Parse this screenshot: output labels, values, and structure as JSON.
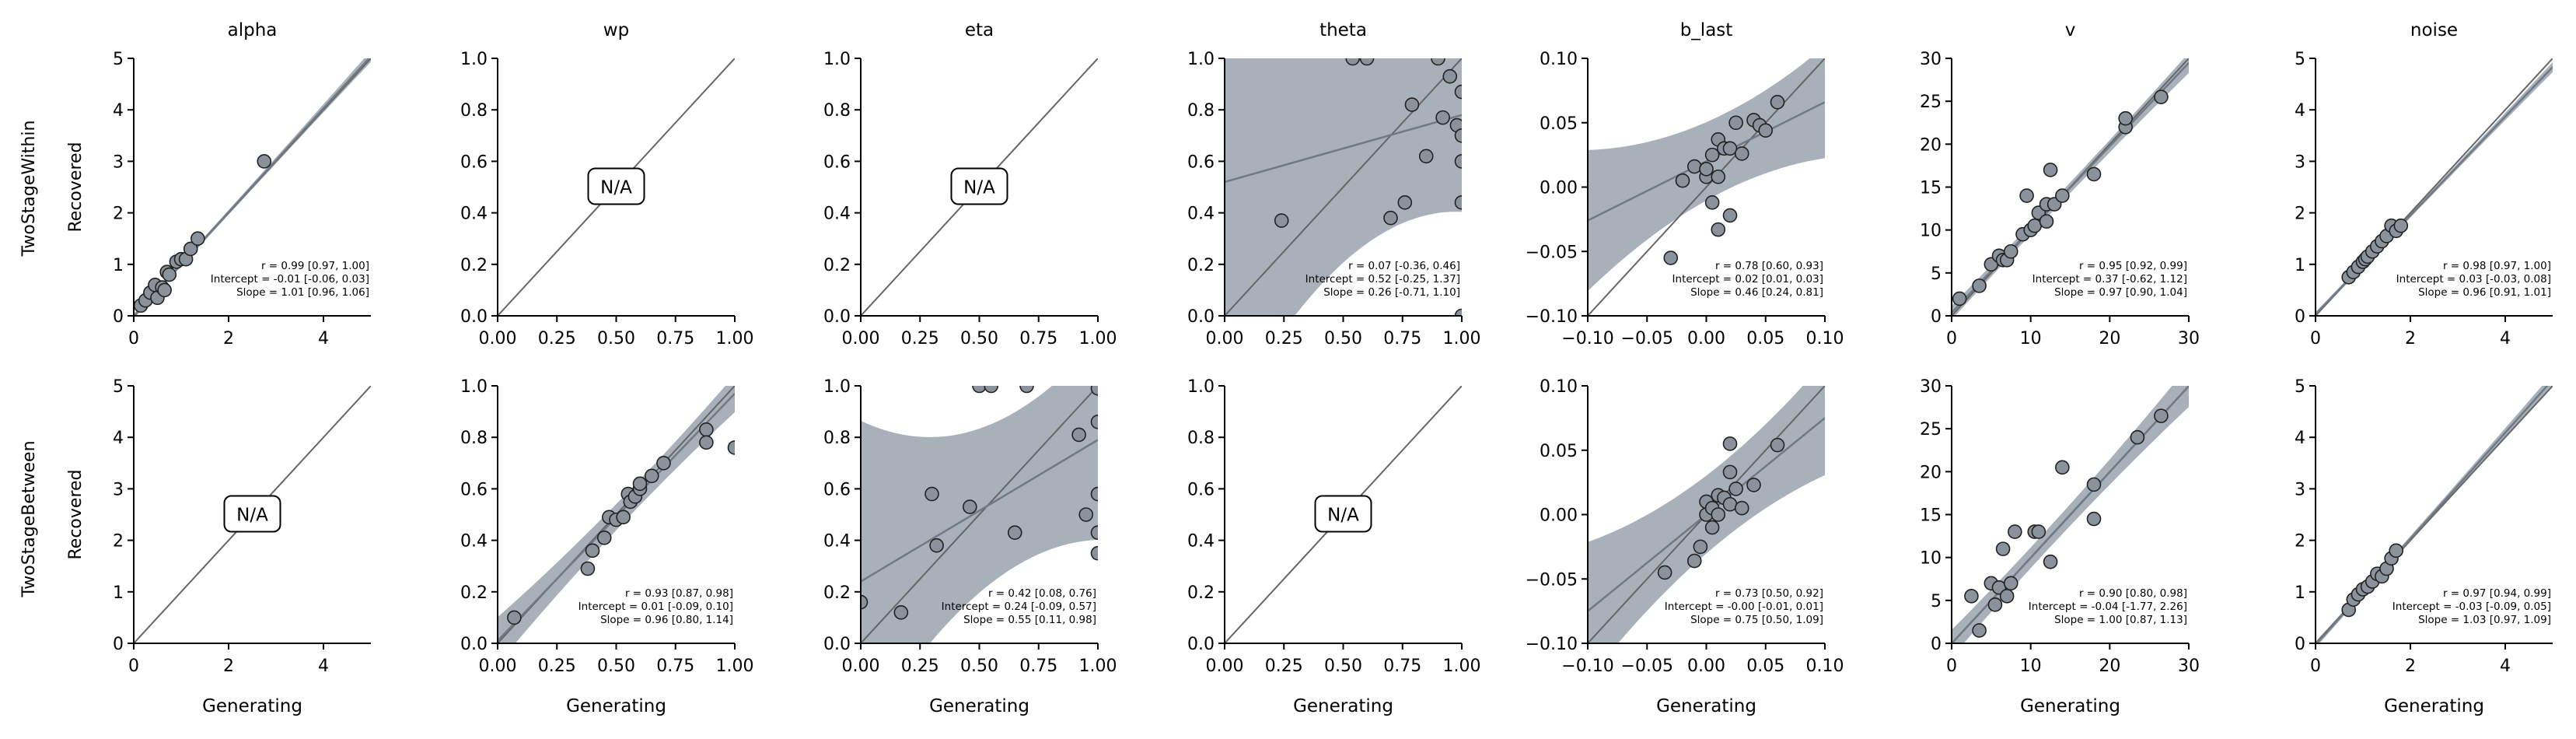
{
  "row_labels": [
    "TwoStageWithin",
    "TwoStageBetween"
  ],
  "chart_data": [
    {
      "type": "scatter",
      "title": "alpha",
      "xlabel": "",
      "ylabel": "Recovered",
      "xlim": [
        0,
        5
      ],
      "ylim": [
        0,
        5
      ],
      "xticks": [
        "0",
        "2",
        "4"
      ],
      "yticks": [
        "0",
        "1",
        "2",
        "3",
        "4",
        "5"
      ],
      "na": false,
      "x": [
        0.15,
        0.25,
        0.35,
        0.45,
        0.5,
        0.6,
        0.65,
        0.7,
        0.75,
        0.9,
        1.0,
        1.1,
        1.2,
        1.35,
        2.75
      ],
      "y": [
        0.2,
        0.3,
        0.45,
        0.6,
        0.35,
        0.55,
        0.5,
        0.85,
        0.8,
        1.05,
        1.1,
        1.1,
        1.3,
        1.5,
        3.0
      ],
      "fit": {
        "intercept": -0.01,
        "slope": 1.01,
        "band": 0.04
      },
      "stats": [
        "r = 0.99 [0.97, 1.00]",
        "Intercept = -0.01 [-0.06, 0.03]",
        "Slope = 1.01 [0.96, 1.06]"
      ]
    },
    {
      "type": "scatter",
      "title": "wp",
      "xlabel": "",
      "ylabel": "",
      "xlim": [
        0,
        1
      ],
      "ylim": [
        0,
        1
      ],
      "xticks": [
        "0.00",
        "0.25",
        "0.50",
        "0.75",
        "1.00"
      ],
      "yticks": [
        "0.0",
        "0.2",
        "0.4",
        "0.6",
        "0.8",
        "1.0"
      ],
      "na": true,
      "na_label": "N/A",
      "x": [],
      "y": [],
      "stats": []
    },
    {
      "type": "scatter",
      "title": "eta",
      "xlabel": "",
      "ylabel": "",
      "xlim": [
        0,
        1
      ],
      "ylim": [
        0,
        1
      ],
      "xticks": [
        "0.00",
        "0.25",
        "0.50",
        "0.75",
        "1.00"
      ],
      "yticks": [
        "0.0",
        "0.2",
        "0.4",
        "0.6",
        "0.8",
        "1.0"
      ],
      "na": true,
      "na_label": "N/A",
      "x": [],
      "y": [],
      "stats": []
    },
    {
      "type": "scatter",
      "title": "theta",
      "xlabel": "",
      "ylabel": "",
      "xlim": [
        0,
        1
      ],
      "ylim": [
        0,
        1
      ],
      "xticks": [
        "0.00",
        "0.25",
        "0.50",
        "0.75",
        "1.00"
      ],
      "yticks": [
        "0.0",
        "0.2",
        "0.4",
        "0.6",
        "0.8",
        "1.0"
      ],
      "na": false,
      "x": [
        0.24,
        0.54,
        0.6,
        0.7,
        0.76,
        0.79,
        0.85,
        0.9,
        0.92,
        0.95,
        0.98,
        1.0,
        1.0,
        1.0,
        1.0,
        1.0
      ],
      "y": [
        0.37,
        1.0,
        1.0,
        0.38,
        0.44,
        0.82,
        0.62,
        1.0,
        0.77,
        0.93,
        0.74,
        0.44,
        0.6,
        0.87,
        0.7,
        0.0
      ],
      "fit": {
        "intercept": 0.52,
        "slope": 0.26,
        "band": 0.35
      },
      "stats": [
        "r = 0.07 [-0.36, 0.46]",
        "Intercept = 0.52 [-0.25, 1.37]",
        "Slope = 0.26 [-0.71, 1.10]"
      ]
    },
    {
      "type": "scatter",
      "title": "b_last",
      "xlabel": "",
      "ylabel": "",
      "xlim": [
        -0.1,
        0.1
      ],
      "ylim": [
        -0.1,
        0.1
      ],
      "xticks": [
        "−0.10",
        "−0.05",
        "0.00",
        "0.05",
        "0.10"
      ],
      "yticks": [
        "−0.10",
        "−0.05",
        "0.00",
        "0.05",
        "0.10"
      ],
      "na": false,
      "x": [
        -0.03,
        -0.02,
        -0.01,
        0.0,
        0.0,
        0.005,
        0.005,
        0.01,
        0.01,
        0.01,
        0.015,
        0.02,
        0.02,
        0.025,
        0.03,
        0.04,
        0.045,
        0.05,
        0.06
      ],
      "y": [
        -0.055,
        0.005,
        0.016,
        0.008,
        0.014,
        0.025,
        -0.012,
        0.008,
        -0.033,
        0.037,
        0.03,
        -0.022,
        0.03,
        0.05,
        0.026,
        0.052,
        0.048,
        0.044,
        0.066
      ],
      "fit": {
        "intercept": 0.02,
        "slope": 0.46,
        "band": 0.03
      },
      "stats": [
        "r = 0.78 [0.60, 0.93]",
        "Intercept = 0.02 [0.01, 0.03]",
        "Slope = 0.46 [0.24, 0.81]"
      ]
    },
    {
      "type": "scatter",
      "title": "v",
      "xlabel": "",
      "ylabel": "",
      "xlim": [
        0,
        30
      ],
      "ylim": [
        0,
        30
      ],
      "xticks": [
        "0",
        "10",
        "20",
        "30"
      ],
      "yticks": [
        "0",
        "5",
        "10",
        "15",
        "20",
        "25",
        "30"
      ],
      "na": false,
      "x": [
        1,
        3.5,
        5,
        6,
        6.5,
        7,
        7.5,
        9,
        9.5,
        10,
        10.5,
        11,
        12,
        12,
        12.5,
        13,
        14,
        18,
        22,
        22,
        26.5
      ],
      "y": [
        2,
        3.5,
        6,
        7,
        6.5,
        6.5,
        7.5,
        9.5,
        14,
        10,
        10.5,
        12,
        11,
        13,
        17,
        13,
        14,
        16.5,
        22,
        23,
        25.5
      ],
      "fit": {
        "intercept": 0.37,
        "slope": 0.97,
        "band": 0.6
      },
      "stats": [
        "r = 0.95 [0.92, 0.99]",
        "Intercept = 0.37 [-0.62, 1.12]",
        "Slope = 0.97 [0.90, 1.04]"
      ]
    },
    {
      "type": "scatter",
      "title": "noise",
      "xlabel": "",
      "ylabel": "",
      "xlim": [
        0,
        5
      ],
      "ylim": [
        0,
        5
      ],
      "xticks": [
        "0",
        "2",
        "4"
      ],
      "yticks": [
        "0",
        "1",
        "2",
        "3",
        "4",
        "5"
      ],
      "na": false,
      "x": [
        0.7,
        0.8,
        0.9,
        1.0,
        1.05,
        1.1,
        1.2,
        1.3,
        1.4,
        1.5,
        1.6,
        1.7,
        1.8
      ],
      "y": [
        0.75,
        0.85,
        0.95,
        1.05,
        1.1,
        1.15,
        1.25,
        1.35,
        1.45,
        1.55,
        1.75,
        1.65,
        1.75
      ],
      "fit": {
        "intercept": 0.03,
        "slope": 0.96,
        "band": 0.04
      },
      "stats": [
        "r = 0.98 [0.97, 1.00]",
        "Intercept = 0.03 [-0.03, 0.08]",
        "Slope = 0.96 [0.91, 1.01]"
      ]
    },
    {
      "type": "scatter",
      "title": "",
      "xlabel": "Generating",
      "ylabel": "Recovered",
      "xlim": [
        0,
        5
      ],
      "ylim": [
        0,
        5
      ],
      "xticks": [
        "0",
        "2",
        "4"
      ],
      "yticks": [
        "0",
        "1",
        "2",
        "3",
        "4",
        "5"
      ],
      "na": true,
      "na_label": "N/A",
      "x": [],
      "y": [],
      "stats": []
    },
    {
      "type": "scatter",
      "title": "",
      "xlabel": "Generating",
      "ylabel": "",
      "xlim": [
        0,
        1
      ],
      "ylim": [
        0,
        1
      ],
      "xticks": [
        "0.00",
        "0.25",
        "0.50",
        "0.75",
        "1.00"
      ],
      "yticks": [
        "0.0",
        "0.2",
        "0.4",
        "0.6",
        "0.8",
        "1.0"
      ],
      "na": false,
      "x": [
        0.07,
        0.38,
        0.4,
        0.45,
        0.47,
        0.5,
        0.53,
        0.55,
        0.56,
        0.58,
        0.6,
        0.6,
        0.65,
        0.7,
        0.88,
        0.88,
        1.0
      ],
      "y": [
        0.1,
        0.29,
        0.36,
        0.41,
        0.49,
        0.48,
        0.49,
        0.58,
        0.55,
        0.57,
        0.6,
        0.62,
        0.65,
        0.7,
        0.83,
        0.78,
        0.76
      ],
      "fit": {
        "intercept": 0.01,
        "slope": 0.96,
        "band": 0.05
      },
      "stats": [
        "r = 0.93 [0.87, 0.98]",
        "Intercept = 0.01 [-0.09, 0.10]",
        "Slope = 0.96 [0.80, 1.14]"
      ]
    },
    {
      "type": "scatter",
      "title": "",
      "xlabel": "Generating",
      "ylabel": "",
      "xlim": [
        0,
        1
      ],
      "ylim": [
        0,
        1
      ],
      "xticks": [
        "0.00",
        "0.25",
        "0.50",
        "0.75",
        "1.00"
      ],
      "yticks": [
        "0.0",
        "0.2",
        "0.4",
        "0.6",
        "0.8",
        "1.0"
      ],
      "na": false,
      "x": [
        0.0,
        0.17,
        0.3,
        0.32,
        0.46,
        0.5,
        0.55,
        0.65,
        0.7,
        0.92,
        0.95,
        1.0,
        1.0,
        1.0,
        1.0,
        1.0
      ],
      "y": [
        0.16,
        0.12,
        0.58,
        0.38,
        0.53,
        1.0,
        1.0,
        0.43,
        1.0,
        0.81,
        0.5,
        0.86,
        0.58,
        0.43,
        0.35,
        0.99
      ],
      "fit": {
        "intercept": 0.24,
        "slope": 0.55,
        "band": 0.3
      },
      "stats": [
        "r = 0.42 [0.08, 0.76]",
        "Intercept = 0.24 [-0.09, 0.57]",
        "Slope = 0.55 [0.11, 0.98]"
      ]
    },
    {
      "type": "scatter",
      "title": "",
      "xlabel": "Generating",
      "ylabel": "",
      "xlim": [
        0,
        1
      ],
      "ylim": [
        0,
        1
      ],
      "xticks": [
        "0.00",
        "0.25",
        "0.50",
        "0.75",
        "1.00"
      ],
      "yticks": [
        "0.0",
        "0.2",
        "0.4",
        "0.6",
        "0.8",
        "1.0"
      ],
      "na": true,
      "na_label": "N/A",
      "x": [],
      "y": [],
      "stats": []
    },
    {
      "type": "scatter",
      "title": "",
      "xlabel": "Generating",
      "ylabel": "",
      "xlim": [
        -0.1,
        0.1
      ],
      "ylim": [
        -0.1,
        0.1
      ],
      "xticks": [
        "−0.10",
        "−0.05",
        "0.00",
        "0.05",
        "0.10"
      ],
      "yticks": [
        "−0.10",
        "−0.05",
        "0.00",
        "0.05",
        "0.10"
      ],
      "na": false,
      "x": [
        -0.035,
        -0.01,
        -0.005,
        0.0,
        0.0,
        0.005,
        0.005,
        0.01,
        0.01,
        0.015,
        0.02,
        0.02,
        0.02,
        0.025,
        0.03,
        0.04,
        0.06
      ],
      "y": [
        -0.045,
        -0.036,
        -0.025,
        0.0,
        0.01,
        0.005,
        -0.01,
        0.015,
        0.0,
        0.013,
        0.055,
        0.033,
        0.008,
        0.02,
        0.005,
        0.023,
        0.054
      ],
      "fit": {
        "intercept": 0.0,
        "slope": 0.75,
        "band": 0.03
      },
      "stats": [
        "r = 0.73 [0.50, 0.92]",
        "Intercept = -0.00 [-0.01, 0.01]",
        "Slope = 0.75 [0.50, 1.09]"
      ]
    },
    {
      "type": "scatter",
      "title": "",
      "xlabel": "Generating",
      "ylabel": "",
      "xlim": [
        0,
        30
      ],
      "ylim": [
        0,
        30
      ],
      "xticks": [
        "0",
        "10",
        "20",
        "30"
      ],
      "yticks": [
        "0",
        "5",
        "10",
        "15",
        "20",
        "25",
        "30"
      ],
      "na": false,
      "x": [
        2.5,
        3.5,
        5,
        5.5,
        6,
        6.5,
        7,
        7.5,
        8,
        10.5,
        11,
        12.5,
        14,
        18,
        18,
        23.5,
        26.5
      ],
      "y": [
        5.5,
        1.5,
        7,
        4.5,
        6.5,
        11,
        5.5,
        7,
        13,
        13,
        13,
        9.5,
        20.5,
        14.5,
        18.5,
        24,
        26.5
      ],
      "fit": {
        "intercept": -0.04,
        "slope": 1.0,
        "band": 1.2
      },
      "stats": [
        "r = 0.90 [0.80, 0.98]",
        "Intercept = -0.04 [-1.77, 2.26]",
        "Slope = 1.00 [0.87, 1.13]"
      ]
    },
    {
      "type": "scatter",
      "title": "",
      "xlabel": "Generating",
      "ylabel": "",
      "xlim": [
        0,
        5
      ],
      "ylim": [
        0,
        5
      ],
      "xticks": [
        "0",
        "2",
        "4"
      ],
      "yticks": [
        "0",
        "1",
        "2",
        "3",
        "4",
        "5"
      ],
      "na": false,
      "x": [
        0.7,
        0.8,
        0.9,
        1.0,
        1.1,
        1.2,
        1.3,
        1.4,
        1.5,
        1.6,
        1.7
      ],
      "y": [
        0.65,
        0.85,
        0.95,
        1.05,
        1.1,
        1.2,
        1.35,
        1.3,
        1.45,
        1.65,
        1.8
      ],
      "fit": {
        "intercept": -0.03,
        "slope": 1.03,
        "band": 0.05
      },
      "stats": [
        "r = 0.97 [0.94, 0.99]",
        "Intercept = -0.03 [-0.09, 0.05]",
        "Slope = 1.03 [0.97, 1.09]"
      ]
    }
  ]
}
